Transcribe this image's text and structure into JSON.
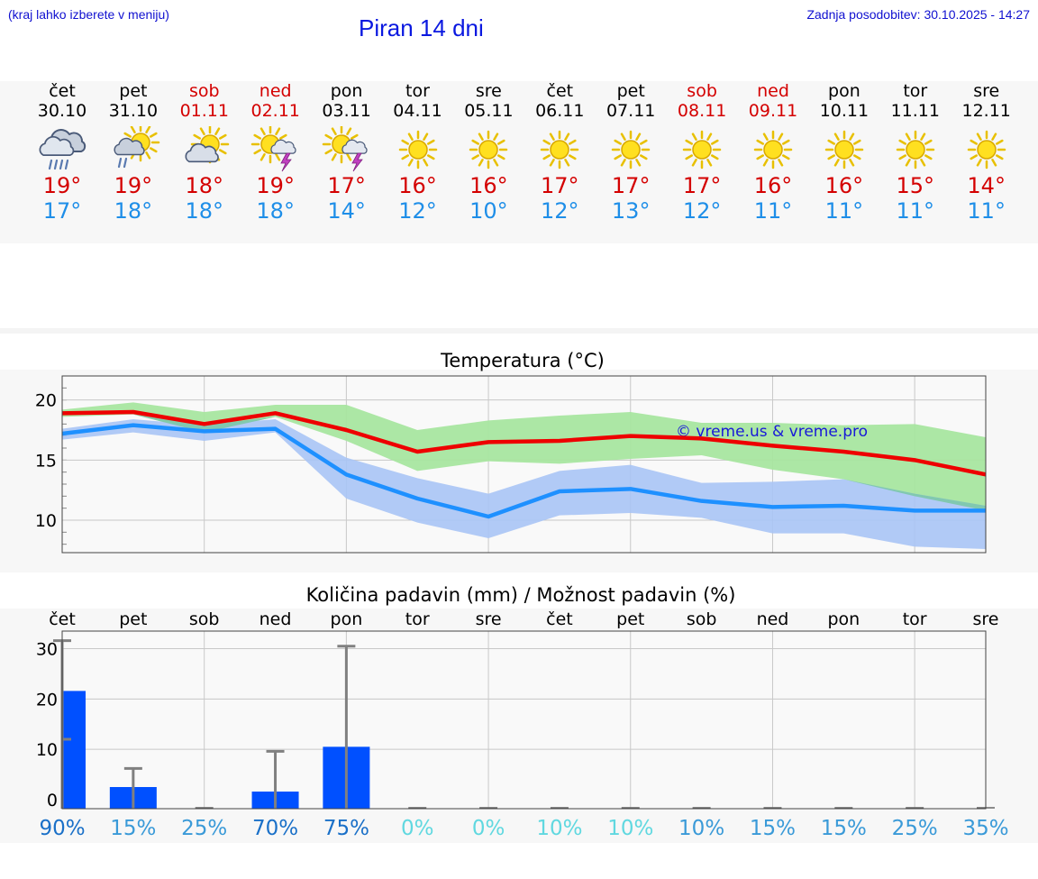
{
  "header": {
    "location_note": "(kraj lahko izberete v meniju)",
    "title": "Piran 14 dni",
    "updated": "Zadnja posodobitev: 30.10.2025 - 14:27"
  },
  "days": [
    {
      "name": "čet",
      "date": "30.10",
      "weekend": false,
      "icon": "rain-cloud-icon",
      "tmax": "19°",
      "tmin": "17°"
    },
    {
      "name": "pet",
      "date": "31.10",
      "weekend": false,
      "icon": "sun-cloud-rain-icon",
      "tmax": "19°",
      "tmin": "18°"
    },
    {
      "name": "sob",
      "date": "01.11",
      "weekend": true,
      "icon": "sun-cloud-icon",
      "tmax": "18°",
      "tmin": "18°"
    },
    {
      "name": "ned",
      "date": "02.11",
      "weekend": true,
      "icon": "sun-storm-icon",
      "tmax": "19°",
      "tmin": "18°"
    },
    {
      "name": "pon",
      "date": "03.11",
      "weekend": false,
      "icon": "sun-storm-icon",
      "tmax": "17°",
      "tmin": "14°"
    },
    {
      "name": "tor",
      "date": "04.11",
      "weekend": false,
      "icon": "sun-icon",
      "tmax": "16°",
      "tmin": "12°"
    },
    {
      "name": "sre",
      "date": "05.11",
      "weekend": false,
      "icon": "sun-icon",
      "tmax": "16°",
      "tmin": "10°"
    },
    {
      "name": "čet",
      "date": "06.11",
      "weekend": false,
      "icon": "sun-icon",
      "tmax": "17°",
      "tmin": "12°"
    },
    {
      "name": "pet",
      "date": "07.11",
      "weekend": false,
      "icon": "sun-icon",
      "tmax": "17°",
      "tmin": "13°"
    },
    {
      "name": "sob",
      "date": "08.11",
      "weekend": true,
      "icon": "sun-icon",
      "tmax": "17°",
      "tmin": "12°"
    },
    {
      "name": "ned",
      "date": "09.11",
      "weekend": true,
      "icon": "sun-icon",
      "tmax": "16°",
      "tmin": "11°"
    },
    {
      "name": "pon",
      "date": "10.11",
      "weekend": false,
      "icon": "sun-icon",
      "tmax": "16°",
      "tmin": "11°"
    },
    {
      "name": "tor",
      "date": "11.11",
      "weekend": false,
      "icon": "sun-icon",
      "tmax": "15°",
      "tmin": "11°"
    },
    {
      "name": "sre",
      "date": "12.11",
      "weekend": false,
      "icon": "sun-icon",
      "tmax": "14°",
      "tmin": "11°"
    }
  ],
  "colors": {
    "max_line": "#ee0000",
    "min_line": "#1e90ff",
    "max_band": "#a8e6a0",
    "min_band": "#a9c4f5",
    "overlap_band": "#7cc8a8",
    "bar": "#0050ff",
    "errbar": "#808080"
  },
  "chart_data": [
    {
      "type": "line",
      "title": "Temperatura (°C)",
      "watermark": "© vreme.us & vreme.pro",
      "x": [
        0,
        1,
        2,
        3,
        4,
        5,
        6,
        7,
        8,
        9,
        10,
        11,
        12,
        13
      ],
      "ylim": [
        7.3,
        22.0
      ],
      "yticks": [
        10,
        15,
        20
      ],
      "grid": true,
      "series": [
        {
          "name": "max",
          "values": [
            18.9,
            19.0,
            18.0,
            18.9,
            17.5,
            15.7,
            16.5,
            16.6,
            17.0,
            16.8,
            16.2,
            15.7,
            15.0,
            13.8
          ],
          "band_low": [
            18.6,
            18.8,
            17.3,
            18.6,
            16.6,
            14.1,
            14.9,
            14.7,
            15.1,
            15.4,
            14.2,
            13.4,
            12.0,
            10.8
          ],
          "band_high": [
            19.2,
            19.8,
            19.0,
            19.6,
            19.6,
            17.5,
            18.3,
            18.7,
            19.0,
            18.1,
            18.1,
            17.9,
            18.0,
            16.9
          ]
        },
        {
          "name": "min",
          "values": [
            17.2,
            17.9,
            17.4,
            17.6,
            13.8,
            11.8,
            10.3,
            12.4,
            12.6,
            11.6,
            11.1,
            11.2,
            10.8,
            10.8
          ],
          "band_low": [
            16.7,
            17.3,
            16.6,
            17.3,
            11.8,
            9.8,
            8.5,
            10.4,
            10.6,
            10.2,
            8.9,
            8.9,
            7.8,
            7.6
          ],
          "band_high": [
            17.6,
            18.4,
            17.9,
            18.4,
            15.2,
            13.5,
            12.2,
            14.1,
            14.6,
            13.1,
            13.2,
            13.4,
            12.2,
            11.2
          ]
        }
      ]
    },
    {
      "type": "bar",
      "title": "Količina padavin (mm) / Možnost padavin (%)",
      "categories": [
        "čet",
        "pet",
        "sob",
        "ned",
        "pon",
        "tor",
        "sre",
        "čet",
        "pet",
        "sob",
        "ned",
        "pon",
        "tor",
        "sre"
      ],
      "values": [
        21.6,
        2.5,
        0,
        1.6,
        10.5,
        0,
        0,
        0,
        0,
        0,
        0,
        0,
        0,
        0
      ],
      "err_low": [
        12.0,
        0,
        0,
        0,
        0,
        0,
        0,
        0,
        0,
        0,
        0,
        0,
        0,
        0
      ],
      "err_high": [
        31.6,
        6.2,
        0,
        9.6,
        30.5,
        0,
        0,
        0,
        0,
        0,
        0,
        0,
        0,
        0
      ],
      "ylim": [
        -1.8,
        33.5
      ],
      "yticks": [
        0,
        10,
        20,
        30
      ],
      "probability": [
        "90%",
        "15%",
        "25%",
        "70%",
        "75%",
        "0%",
        "0%",
        "10%",
        "10%",
        "10%",
        "15%",
        "15%",
        "25%",
        "35%"
      ],
      "probability_colors": [
        "#1a70c8",
        "#3a9ad8",
        "#3a9ad8",
        "#1a70c8",
        "#1a70c8",
        "#60d8e0",
        "#60d8e0",
        "#60d8e0",
        "#60d8e0",
        "#3a9ad8",
        "#3a9ad8",
        "#3a9ad8",
        "#3a9ad8",
        "#3a9ad8"
      ]
    }
  ]
}
